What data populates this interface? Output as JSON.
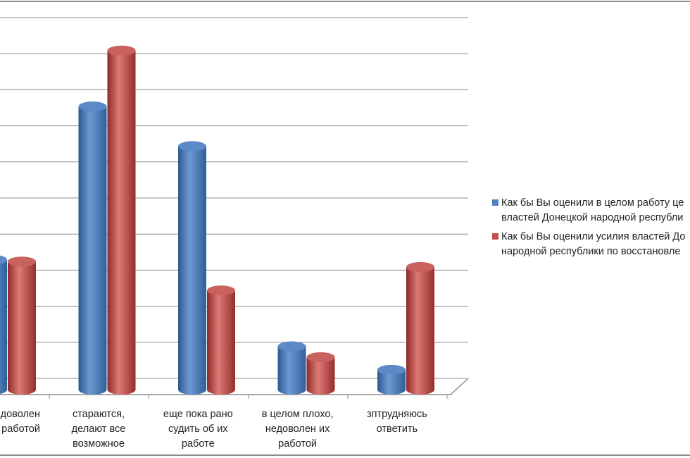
{
  "chart_data": {
    "type": "bar",
    "style": "3d-cylinder",
    "categories": [
      [
        "доволен",
        "работой"
      ],
      [
        "стараются,",
        "делают все",
        "возможное"
      ],
      [
        "еще пока рано",
        "судить об их",
        "работе"
      ],
      [
        "в целом плохо,",
        "недоволен их",
        "работой"
      ],
      [
        "зптрудняюсь",
        "ответить"
      ]
    ],
    "series": [
      {
        "name": [
          "Как бы Вы оценили в целом работу це",
          "властей Донецкой народной республи"
        ],
        "color": "#4f81bd",
        "values": [
          3.6,
          7.85,
          6.75,
          1.2,
          0.55
        ]
      },
      {
        "name": [
          "Как бы Вы оценили усилия властей До",
          "народной республики по восстановле"
        ],
        "color": "#c0504d",
        "values": [
          3.55,
          9.4,
          2.75,
          0.9,
          3.4
        ]
      }
    ],
    "ylim": [
      0,
      10
    ],
    "grid": true,
    "legend": "right"
  }
}
